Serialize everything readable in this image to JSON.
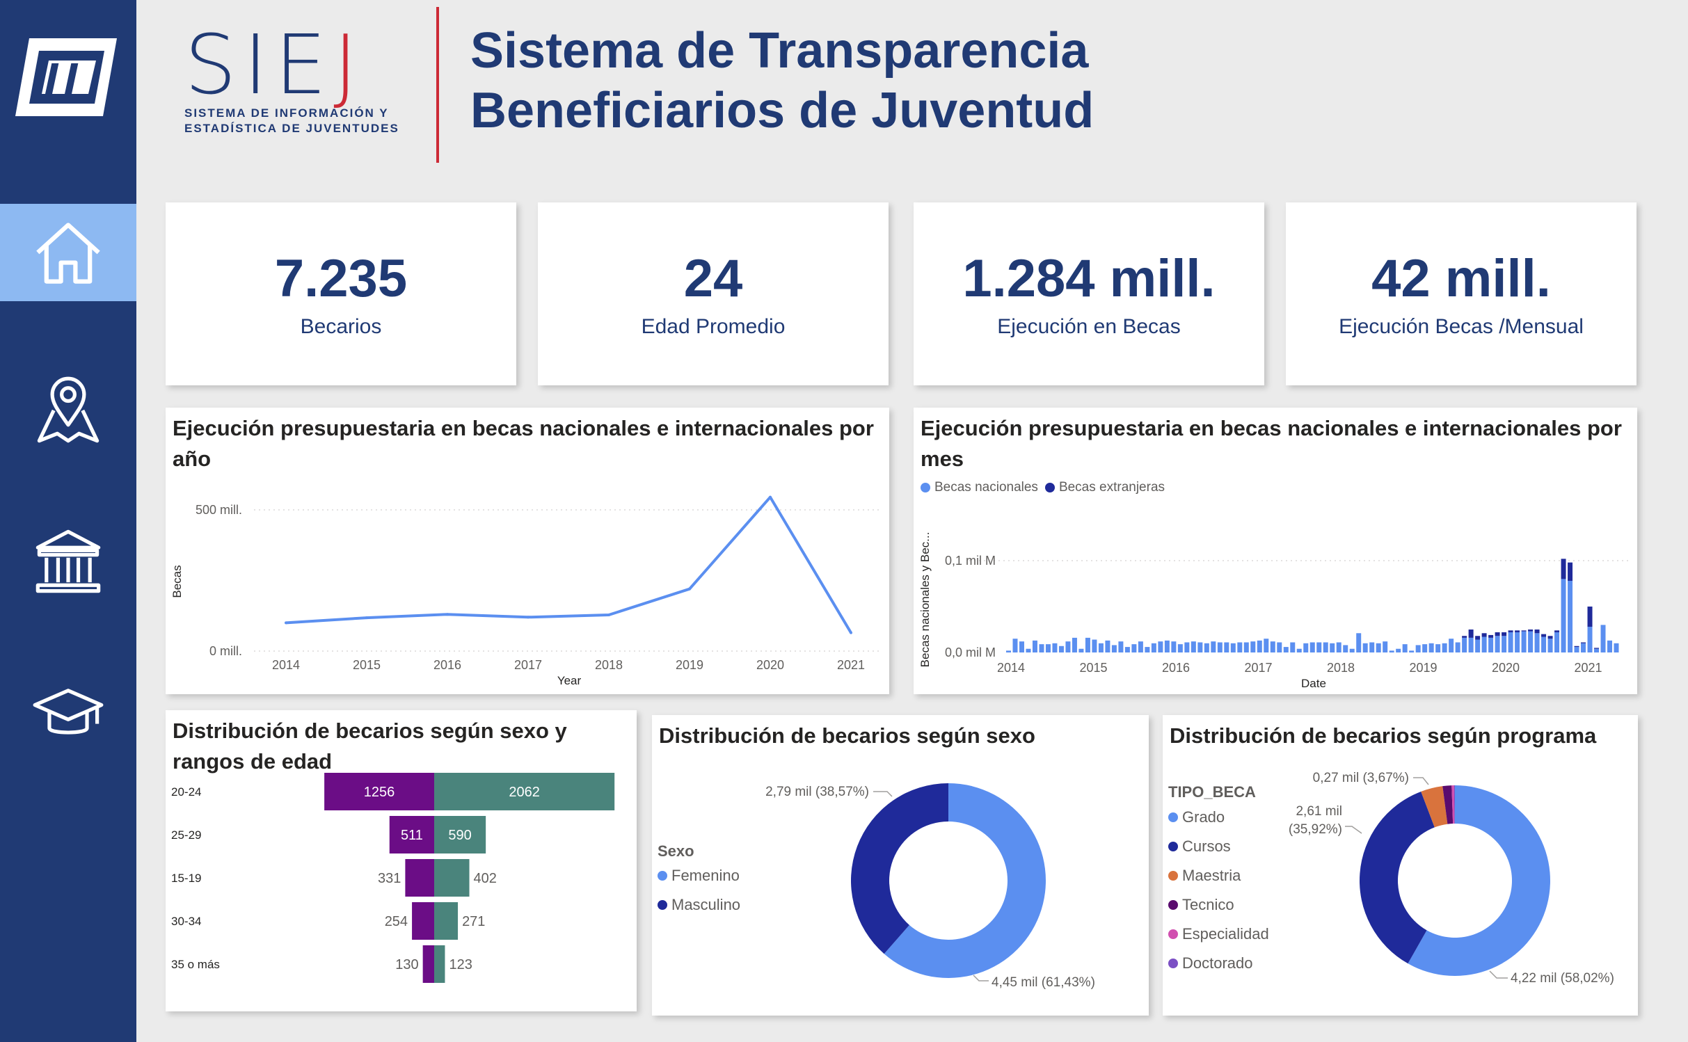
{
  "brand": {
    "acronym_main": "SIE",
    "acronym_accent": "J",
    "subtitle_line1": "SISTEMA DE INFORMACIÓN Y",
    "subtitle_line2": "ESTADÍSTICA DE JUVENTUDES"
  },
  "header": {
    "title_line1": "Sistema de Transparencia",
    "title_line2": "Beneficiarios de Juventud"
  },
  "sidebar": {
    "items": [
      {
        "icon": "home-icon",
        "active": true
      },
      {
        "icon": "map-pin-icon",
        "active": false
      },
      {
        "icon": "institution-icon",
        "active": false
      },
      {
        "icon": "graduation-cap-icon",
        "active": false
      }
    ]
  },
  "kpis": [
    {
      "value": "7.235",
      "label": "Becarios"
    },
    {
      "value": "24",
      "label": "Edad Promedio"
    },
    {
      "value": "1.284 mill.",
      "label": "Ejecución en Becas"
    },
    {
      "value": "42 mill.",
      "label": "Ejecución Becas /Mensual"
    }
  ],
  "colors": {
    "navy": "#203a74",
    "accent_red": "#cc2a36",
    "nav_active": "#8db9f2",
    "light_blue": "#5b8ff0",
    "dark_blue": "#1f2a9a",
    "purple": "#6b0d86",
    "teal": "#4a847c",
    "orange": "#d9733d",
    "dark_purple": "#5a0c6e",
    "pink": "#d14fb0",
    "violet": "#7b4fc4"
  },
  "chart_data": [
    {
      "id": "year_line",
      "type": "line",
      "title": "Ejecución presupuestaria en becas nacionales e internacionales por año",
      "xlabel": "Year",
      "ylabel": "Becas",
      "x": [
        "2014",
        "2015",
        "2016",
        "2017",
        "2018",
        "2019",
        "2020",
        "2021"
      ],
      "values": [
        100,
        118,
        130,
        120,
        128,
        220,
        545,
        65
      ],
      "y_ticks": [
        "0 mill.",
        "500 mill."
      ],
      "ylim": [
        0,
        500
      ],
      "grid": true
    },
    {
      "id": "month_bar",
      "type": "bar",
      "title": "Ejecución presupuestaria en becas nacionales e internacionales por mes",
      "xlabel": "Date",
      "ylabel": "Becas nacionales y Bec...",
      "y_ticks": [
        "0,0 mil M",
        "0,1 mil M"
      ],
      "x_ticks": [
        "2014",
        "2015",
        "2016",
        "2017",
        "2018",
        "2019",
        "2020",
        "2021"
      ],
      "legend": [
        "Becas nacionales",
        "Becas extranjeras"
      ],
      "legend_position": "top-left",
      "series": [
        {
          "name": "Becas nacionales",
          "values": [
            0.002,
            0.015,
            0.012,
            0.004,
            0.013,
            0.009,
            0.009,
            0.01,
            0.007,
            0.012,
            0.016,
            0.004,
            0.016,
            0.014,
            0.01,
            0.013,
            0.008,
            0.012,
            0.006,
            0.009,
            0.012,
            0.006,
            0.01,
            0.012,
            0.013,
            0.012,
            0.009,
            0.011,
            0.012,
            0.011,
            0.01,
            0.012,
            0.011,
            0.011,
            0.01,
            0.011,
            0.011,
            0.012,
            0.013,
            0.015,
            0.012,
            0.011,
            0.006,
            0.011,
            0.004,
            0.01,
            0.011,
            0.011,
            0.011,
            0.01,
            0.011,
            0.008,
            0.004,
            0.021,
            0.01,
            0.011,
            0.01,
            0.012,
            0.002,
            0.004,
            0.009,
            0.002,
            0.008,
            0.009,
            0.01,
            0.009,
            0.01,
            0.015,
            0.011,
            0.016,
            0.016,
            0.014,
            0.017,
            0.016,
            0.018,
            0.018,
            0.022,
            0.022,
            0.023,
            0.023,
            0.021,
            0.017,
            0.015,
            0.022,
            0.08,
            0.078,
            0.006,
            0.01,
            0.028,
            0.004,
            0.03,
            0.013,
            0.01
          ],
          "_note": ""
        },
        {
          "name": "Becas extranjeras",
          "values": [
            0,
            0,
            0,
            0,
            0,
            0,
            0,
            0,
            0,
            0,
            0,
            0,
            0,
            0,
            0,
            0,
            0,
            0,
            0,
            0,
            0,
            0,
            0,
            0,
            0,
            0,
            0,
            0,
            0,
            0,
            0,
            0,
            0,
            0,
            0,
            0,
            0,
            0,
            0,
            0,
            0,
            0,
            0,
            0,
            0,
            0,
            0,
            0,
            0,
            0,
            0,
            0,
            0,
            0,
            0,
            0,
            0,
            0,
            0,
            0,
            0,
            0,
            0,
            0,
            0,
            0,
            0,
            0,
            0,
            0.002,
            0.009,
            0.004,
            0.004,
            0.003,
            0.004,
            0.004,
            0.002,
            0.002,
            0.001,
            0.002,
            0.004,
            0.003,
            0.003,
            0.002,
            0.022,
            0.02,
            0.001,
            0.001,
            0.022,
            0.001,
            0,
            0,
            0
          ]
        }
      ]
    },
    {
      "id": "sex_age_bar",
      "type": "bar",
      "title": "Distribución de becarios según sexo y rangos de edad",
      "categories": [
        "20-24",
        "25-29",
        "15-19",
        "30-34",
        "35 o más"
      ],
      "series": [
        {
          "name": "",
          "values": [
            1256,
            511,
            331,
            254,
            130
          ]
        },
        {
          "name": "",
          "values": [
            2062,
            590,
            402,
            271,
            123
          ]
        }
      ]
    },
    {
      "id": "sex_donut",
      "type": "pie",
      "title": "Distribución de becarios según sexo",
      "legend_title": "Sexo",
      "categories": [
        "Femenino",
        "Masculino"
      ],
      "values": [
        4.45,
        2.79
      ],
      "labels": [
        "4,45 mil (61,43%)",
        "2,79 mil (38,57%)"
      ]
    },
    {
      "id": "program_donut",
      "type": "pie",
      "title": "Distribución de becarios según programa",
      "legend_title": "TIPO_BECA",
      "categories": [
        "Grado",
        "Cursos",
        "Maestria",
        "Tecnico",
        "Especialidad",
        "Doctorado"
      ],
      "values": [
        4.22,
        2.61,
        0.27,
        0.11,
        0.03,
        0.01
      ],
      "labels": [
        "4,22 mil (58,02%)",
        "2,61 mil (35,92%)",
        "0,27 mil (3,67%)"
      ]
    }
  ]
}
